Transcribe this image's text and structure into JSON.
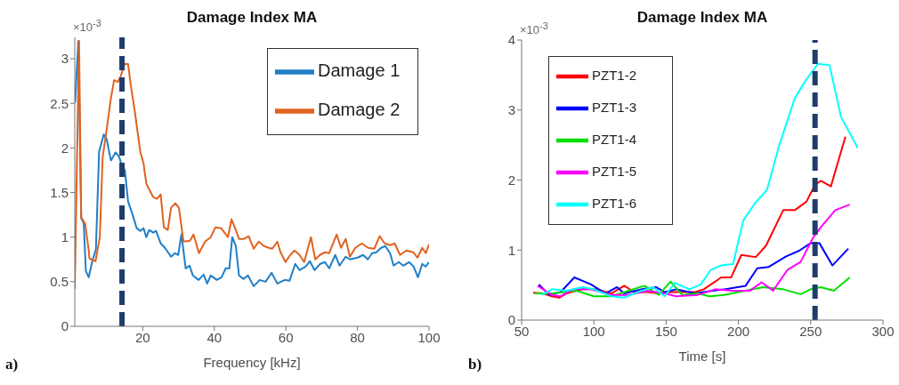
{
  "chart_data": [
    {
      "type": "line",
      "title": "Damage Index MA",
      "xlabel": "Frequency [kHz]",
      "annotations": [
        "×10$^{-3}$",
        "a)"
      ],
      "xlim": [
        1,
        100
      ],
      "xticks": [
        20,
        40,
        60,
        80,
        100
      ],
      "ylim": [
        0,
        3.24
      ],
      "yticks": [
        0,
        0.5,
        1,
        1.5,
        2,
        2.5,
        3
      ],
      "grid": false,
      "legend": "top right",
      "marker": "none",
      "line_style": "solid",
      "ref_lines": [
        {
          "axis": "x",
          "value": 14.2,
          "color": "#1f3d6b",
          "line_style": "dashed"
        }
      ],
      "series": [
        {
          "name": "Damage 1",
          "color": "#1f7fc8",
          "x": [
            1.1,
            2,
            2.8,
            3.5,
            4.1,
            4.9,
            5.9,
            6.9,
            7.8,
            9.1,
            9.9,
            11.1,
            12.4,
            13.4,
            14.2,
            15,
            15.9,
            17.1,
            18.3,
            19.3,
            20.2,
            21,
            21.8,
            22.9,
            23.7,
            25,
            26.2,
            27.9,
            29,
            29.9,
            30.8,
            32,
            33.1,
            34,
            35.6,
            37,
            38,
            39,
            40.7,
            42,
            43.2,
            44.2,
            45,
            46,
            46.9,
            48.1,
            49.4,
            51,
            52.7,
            54.3,
            56,
            57.6,
            59.7,
            61,
            62.6,
            63.8,
            65.5,
            66.7,
            68,
            69.6,
            70.9,
            72.1,
            73.8,
            75,
            76.7,
            77.9,
            80,
            81.6,
            82.9,
            84.1,
            85.3,
            86.6,
            87.8,
            89.1,
            90.1,
            91.5,
            92.8,
            94.4,
            95.7,
            96.9,
            98.1,
            99,
            100
          ],
          "values": [
            2.51,
            3.2,
            1.21,
            1.16,
            0.62,
            0.55,
            0.73,
            0.86,
            1.96,
            2.15,
            2.1,
            1.86,
            1.95,
            1.9,
            1.8,
            1.75,
            1.4,
            1.26,
            1.1,
            1.07,
            1.1,
            1.0,
            1.08,
            1.05,
            1.07,
            0.93,
            0.88,
            0.78,
            0.82,
            0.8,
            1.03,
            0.65,
            0.68,
            0.57,
            0.52,
            0.58,
            0.48,
            0.57,
            0.52,
            0.55,
            0.65,
            0.65,
            1.0,
            0.9,
            0.57,
            0.53,
            0.57,
            0.45,
            0.52,
            0.5,
            0.6,
            0.48,
            0.52,
            0.51,
            0.7,
            0.63,
            0.67,
            0.73,
            0.63,
            0.7,
            0.72,
            0.65,
            0.8,
            0.68,
            0.78,
            0.75,
            0.77,
            0.8,
            0.75,
            0.82,
            0.83,
            0.88,
            0.9,
            0.82,
            0.68,
            0.72,
            0.68,
            0.72,
            0.67,
            0.55,
            0.7,
            0.67,
            0.72
          ]
        },
        {
          "name": "Damage 2",
          "color": "#e0621f",
          "x": [
            1,
            2.2,
            2.8,
            3.9,
            4.9,
            5.1,
            6.8,
            8,
            8.8,
            10.1,
            11.1,
            12,
            13,
            13.8,
            14.9,
            15.9,
            16.7,
            17.7,
            19.3,
            20.2,
            21,
            21.6,
            22.9,
            24,
            25,
            25.9,
            27,
            27.9,
            29.1,
            30.1,
            31.4,
            33.2,
            34.2,
            35.7,
            37.4,
            39,
            40.3,
            41.9,
            43.8,
            44.8,
            46,
            46.9,
            48.3,
            49.6,
            51,
            52.4,
            53.9,
            55.2,
            56.2,
            57.6,
            58.5,
            59.9,
            61.2,
            62.4,
            63.8,
            65.1,
            67,
            68.2,
            69.5,
            70.9,
            72.1,
            74.2,
            75.4,
            76.7,
            77.9,
            79.4,
            81.2,
            83,
            84.7,
            86.2,
            87.6,
            89.1,
            90.4,
            91.9,
            93.7,
            95.6,
            96.8,
            98.1,
            99.1,
            100
          ],
          "values": [
            0.42,
            3.2,
            1.22,
            1.15,
            0.85,
            0.76,
            0.73,
            1.0,
            1.9,
            2.26,
            2.56,
            2.76,
            2.74,
            2.8,
            2.94,
            2.94,
            2.69,
            2.43,
            1.96,
            1.83,
            1.6,
            1.55,
            1.45,
            1.43,
            1.48,
            1.11,
            1.08,
            1.33,
            1.38,
            1.33,
            0.95,
            0.96,
            1.03,
            0.82,
            0.95,
            1.0,
            1.11,
            1.1,
            1.0,
            1.2,
            1.08,
            0.98,
            0.98,
            1.01,
            0.87,
            0.95,
            0.9,
            0.88,
            0.87,
            0.95,
            0.83,
            0.72,
            0.8,
            0.85,
            0.8,
            0.72,
            1.0,
            0.75,
            0.8,
            0.83,
            0.82,
            1.03,
            0.88,
            0.98,
            0.78,
            0.88,
            0.93,
            0.88,
            0.87,
            1.01,
            0.93,
            0.91,
            0.93,
            0.8,
            0.85,
            0.83,
            0.77,
            0.88,
            0.82,
            0.92
          ]
        }
      ]
    },
    {
      "type": "line",
      "title": "Damage Index MA",
      "xlabel": "Time [s]",
      "annotations": [
        "×10$^{-3}$",
        "b)"
      ],
      "xlim": [
        50,
        300
      ],
      "xticks": [
        50,
        100,
        150,
        200,
        250,
        300
      ],
      "ylim": [
        0,
        4
      ],
      "yticks": [
        0,
        1,
        2,
        3,
        4
      ],
      "grid": false,
      "legend": "top left",
      "marker": "none",
      "line_style": "solid",
      "ref_lines": [
        {
          "axis": "x",
          "value": 253,
          "color": "#1f3d6b",
          "line_style": "dashed"
        }
      ],
      "series": [
        {
          "name": "PZT1-2",
          "color": "#ff0000",
          "x": [
            58,
            65,
            71,
            76,
            81,
            92,
            102,
            112,
            121,
            128,
            137,
            145,
            153,
            161,
            170,
            176,
            184,
            188,
            195,
            202,
            212,
            219,
            231,
            239,
            247,
            253,
            257,
            264,
            274
          ],
          "values": [
            0.39,
            0.38,
            0.34,
            0.32,
            0.38,
            0.44,
            0.44,
            0.38,
            0.49,
            0.4,
            0.4,
            0.38,
            0.4,
            0.4,
            0.4,
            0.44,
            0.55,
            0.61,
            0.61,
            0.93,
            0.9,
            1.06,
            1.57,
            1.57,
            1.69,
            1.93,
            1.99,
            1.91,
            2.62
          ]
        },
        {
          "name": "PZT1-3",
          "color": "#0000ff",
          "x": [
            62,
            69,
            77,
            86.5,
            98,
            108,
            116,
            121,
            133,
            143,
            149,
            157,
            170,
            182,
            191,
            205,
            213,
            221,
            233,
            242,
            250,
            256,
            265,
            276
          ],
          "values": [
            0.51,
            0.36,
            0.4,
            0.61,
            0.51,
            0.38,
            0.47,
            0.38,
            0.44,
            0.47,
            0.4,
            0.44,
            0.38,
            0.42,
            0.44,
            0.49,
            0.74,
            0.76,
            0.91,
            0.99,
            1.1,
            1.1,
            0.78,
            1.02
          ]
        },
        {
          "name": "PZT1-4",
          "color": "#00e000",
          "x": [
            59,
            71,
            88,
            100,
            112,
            124,
            135,
            145,
            153,
            161,
            172,
            180,
            190,
            217,
            231,
            243,
            250,
            257,
            266,
            277
          ],
          "values": [
            0.38,
            0.38,
            0.42,
            0.34,
            0.34,
            0.42,
            0.49,
            0.36,
            0.55,
            0.36,
            0.38,
            0.34,
            0.36,
            0.47,
            0.44,
            0.37,
            0.44,
            0.47,
            0.42,
            0.61
          ]
        },
        {
          "name": "PZT1-5",
          "color": "#ff00ff",
          "x": [
            61,
            71,
            77,
            85.5,
            98,
            112,
            124,
            137,
            149,
            157,
            172,
            184,
            196,
            208,
            216,
            224,
            234,
            243,
            252,
            258,
            267,
            277
          ],
          "values": [
            0.49,
            0.36,
            0.34,
            0.44,
            0.44,
            0.36,
            0.36,
            0.42,
            0.38,
            0.34,
            0.36,
            0.44,
            0.42,
            0.42,
            0.54,
            0.42,
            0.72,
            0.83,
            1.19,
            1.35,
            1.57,
            1.65
          ]
        },
        {
          "name": "PZT1-6",
          "color": "#00ffff",
          "x": [
            64,
            71,
            81,
            92,
            100,
            112,
            121,
            133,
            141,
            149,
            156,
            166,
            174,
            181,
            188,
            196.3,
            203.3,
            211.5,
            219.8,
            228,
            239,
            246.8,
            255,
            263,
            271,
            282.5
          ],
          "values": [
            0.36,
            0.44,
            0.42,
            0.47,
            0.44,
            0.34,
            0.32,
            0.42,
            0.47,
            0.34,
            0.53,
            0.44,
            0.51,
            0.72,
            0.78,
            0.8,
            1.42,
            1.67,
            1.86,
            2.48,
            3.17,
            3.43,
            3.66,
            3.64,
            2.9,
            2.46
          ]
        }
      ]
    }
  ]
}
